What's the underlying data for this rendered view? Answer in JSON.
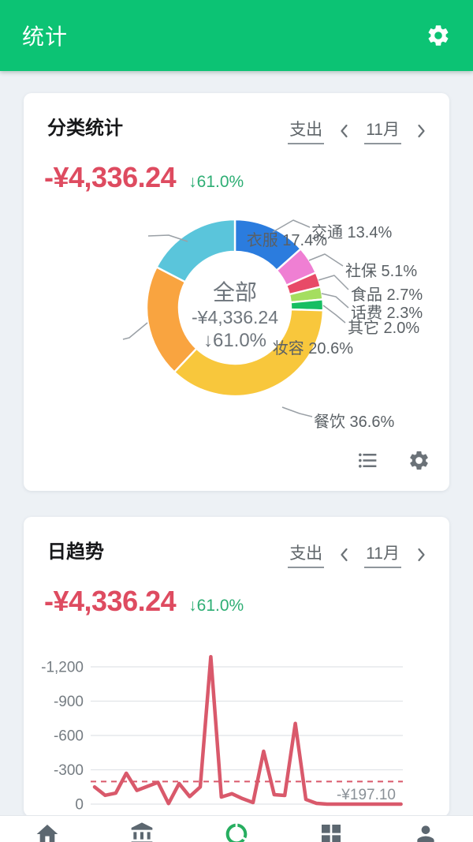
{
  "header": {
    "title": "统计"
  },
  "colors": {
    "app_bar": "#0CC374",
    "amount_negative": "#DE4B60",
    "delta_positive": "#2EAE74",
    "trend_line": "#D9596B",
    "nav_active": "#27AE60",
    "nav_inactive": "#5C6770"
  },
  "cards": {
    "category": {
      "title": "分类统计",
      "filter_label": "支出",
      "period": "11月",
      "amount": "-¥4,336.24",
      "delta": "↓61.0%"
    },
    "trend": {
      "title": "日趋势",
      "filter_label": "支出",
      "period": "11月",
      "amount": "-¥4,336.24",
      "delta": "↓61.0%"
    }
  },
  "chart_data": [
    {
      "type": "pie",
      "title": "分类统计",
      "period": "11月",
      "total": "-¥4,336.24",
      "center_labels": [
        "全部",
        "-¥4,336.24",
        "↓61.0%"
      ],
      "slices": [
        {
          "label": "交通",
          "value": 13.4,
          "color": "#2B7CDE"
        },
        {
          "label": "社保",
          "value": 5.1,
          "color": "#EF7FD3"
        },
        {
          "label": "食品",
          "value": 2.7,
          "color": "#E84A67"
        },
        {
          "label": "话费",
          "value": 2.3,
          "color": "#A5DE60"
        },
        {
          "label": "其它",
          "value": 2.0,
          "color": "#17BE63"
        },
        {
          "label": "餐饮",
          "value": 36.6,
          "color": "#F8C73C"
        },
        {
          "label": "妆容",
          "value": 20.6,
          "color": "#F9A440"
        },
        {
          "label": "衣服",
          "value": 17.4,
          "color": "#5AC5DB"
        }
      ]
    },
    {
      "type": "line",
      "title": "日趋势",
      "period": "11月",
      "x": [
        1,
        2,
        3,
        4,
        5,
        6,
        7,
        8,
        9,
        10,
        11,
        12,
        13,
        14,
        15,
        16,
        17,
        18,
        19,
        20,
        21,
        22,
        23,
        24,
        25,
        26,
        27,
        28,
        29,
        30
      ],
      "values": [
        -150,
        -77,
        -96,
        -270,
        -120,
        -155,
        -190,
        -5,
        -180,
        -66,
        -150,
        -1288,
        -62,
        -91,
        -48,
        -14,
        -462,
        -83,
        -76,
        -705,
        -41,
        -7.24,
        0,
        0,
        0,
        0,
        0,
        0,
        0,
        0
      ],
      "average": -197.1,
      "average_label": "-¥197.10",
      "yticks": [
        {
          "value": -1200,
          "label": "-1,200"
        },
        {
          "value": -900,
          "label": "-900"
        },
        {
          "value": -600,
          "label": "-600"
        },
        {
          "value": -300,
          "label": "-300"
        },
        {
          "value": 0,
          "label": "0"
        }
      ],
      "ylim": [
        0,
        -1350
      ],
      "grid": true,
      "legend_position": "none"
    }
  ],
  "nav": {
    "items": [
      {
        "name": "home",
        "active": false
      },
      {
        "name": "accounts",
        "active": false
      },
      {
        "name": "statistics",
        "active": true
      },
      {
        "name": "modules",
        "active": false
      },
      {
        "name": "profile",
        "active": false
      }
    ]
  }
}
